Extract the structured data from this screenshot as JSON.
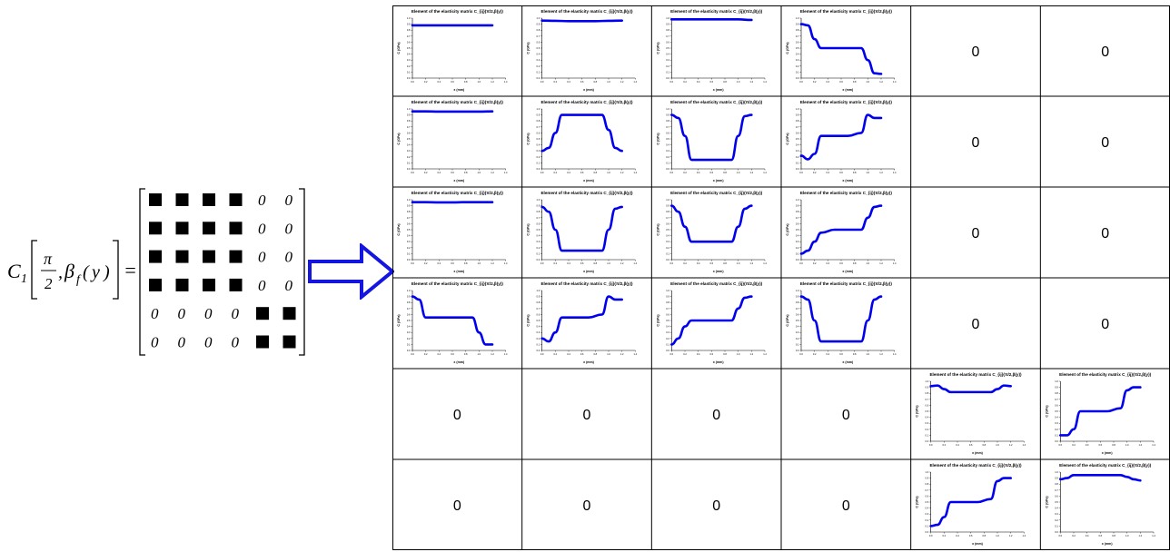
{
  "equation": {
    "lhs_symbol": "C",
    "lhs_subscript": "1",
    "fraction_numerator": "π",
    "fraction_denominator": "2",
    "beta_symbol": "β",
    "beta_subscript": "f",
    "argument_open": "(",
    "argument_var": "y",
    "argument_close": ")",
    "comma": ",",
    "equals": "=",
    "zero_symbol": "0",
    "pattern": [
      [
        "■",
        "■",
        "■",
        "■",
        "0",
        "0"
      ],
      [
        "■",
        "■",
        "■",
        "■",
        "0",
        "0"
      ],
      [
        "■",
        "■",
        "■",
        "■",
        "0",
        "0"
      ],
      [
        "■",
        "■",
        "■",
        "■",
        "0",
        "0"
      ],
      [
        "0",
        "0",
        "0",
        "0",
        "■",
        "■"
      ],
      [
        "0",
        "0",
        "0",
        "0",
        "■",
        "■"
      ]
    ]
  },
  "arrow": {
    "color": "#1515e0",
    "direction": "right"
  },
  "grid": {
    "rows": 6,
    "cols": 6,
    "zero_label": "0",
    "chart_title": "Element of the elasticity matrix C_{ij}(π/2,β(y))",
    "x_label": "x (mm)",
    "y_label_prefix": "C",
    "y_label_unit": "(GPa)",
    "line_color": "#0000ee"
  },
  "chart_data": [
    {
      "cell": "1-1",
      "type": "line",
      "title": "Element of the elasticity matrix C_{ij}(π/2,β(y))",
      "x": [
        0,
        0.2,
        0.4,
        0.6,
        0.8,
        1.0,
        1.2
      ],
      "values": [
        0.88,
        0.88,
        0.88,
        0.88,
        0.88,
        0.88,
        0.88
      ],
      "ylim": [
        0,
        1
      ]
    },
    {
      "cell": "1-2",
      "type": "line",
      "title": "Element of the elasticity matrix C_{ij}(π/2,β(y))",
      "x": [
        0,
        0.2,
        0.4,
        0.6,
        0.8,
        1.0,
        1.2
      ],
      "values": [
        0.96,
        0.955,
        0.95,
        0.95,
        0.95,
        0.955,
        0.96
      ],
      "ylim": [
        0,
        1
      ]
    },
    {
      "cell": "1-3",
      "type": "line",
      "title": "Element of the elasticity matrix C_{ij}(π/2,β(y))",
      "x": [
        0,
        0.2,
        0.4,
        0.6,
        0.8,
        1.0,
        1.2
      ],
      "values": [
        0.98,
        0.98,
        0.98,
        0.98,
        0.98,
        0.98,
        0.97
      ],
      "ylim": [
        0,
        1
      ]
    },
    {
      "cell": "1-4",
      "type": "line",
      "title": "Element of the elasticity matrix C_{ij}(π/2,β(y))",
      "x": [
        0,
        0.1,
        0.2,
        0.3,
        0.5,
        0.7,
        0.9,
        1.0,
        1.1,
        1.2
      ],
      "values": [
        0.9,
        0.88,
        0.65,
        0.5,
        0.5,
        0.5,
        0.5,
        0.3,
        0.08,
        0.07
      ],
      "ylim": [
        0,
        1
      ]
    },
    {
      "cell": "2-1",
      "type": "line",
      "title": "Element of the elasticity matrix C_{ij}(π/2,β(y))",
      "x": [
        0,
        0.2,
        0.4,
        0.6,
        0.8,
        1.0,
        1.2
      ],
      "values": [
        0.96,
        0.96,
        0.955,
        0.955,
        0.955,
        0.955,
        0.96
      ],
      "ylim": [
        0,
        1
      ]
    },
    {
      "cell": "2-2",
      "type": "line",
      "title": "Element of the elasticity matrix C_{ij}(π/2,β(y))",
      "x": [
        0,
        0.1,
        0.2,
        0.3,
        0.5,
        0.7,
        0.9,
        1.0,
        1.1,
        1.2
      ],
      "values": [
        0.3,
        0.35,
        0.6,
        0.9,
        0.9,
        0.9,
        0.9,
        0.65,
        0.35,
        0.3
      ],
      "ylim": [
        0,
        1
      ]
    },
    {
      "cell": "2-3",
      "type": "line",
      "title": "Element of the elasticity matrix C_{ij}(π/2,β(y))",
      "x": [
        0,
        0.1,
        0.2,
        0.3,
        0.5,
        0.7,
        0.9,
        1.0,
        1.1,
        1.2
      ],
      "values": [
        0.9,
        0.85,
        0.55,
        0.15,
        0.15,
        0.15,
        0.15,
        0.55,
        0.88,
        0.9
      ],
      "ylim": [
        0,
        1
      ]
    },
    {
      "cell": "2-4",
      "type": "line",
      "title": "Element of the elasticity matrix C_{ij}(π/2,β(y))",
      "x": [
        0,
        0.1,
        0.2,
        0.3,
        0.5,
        0.7,
        0.9,
        1.0,
        1.1,
        1.2
      ],
      "values": [
        0.22,
        0.16,
        0.25,
        0.55,
        0.55,
        0.55,
        0.6,
        0.9,
        0.85,
        0.85
      ],
      "ylim": [
        0,
        1
      ]
    },
    {
      "cell": "3-1",
      "type": "line",
      "title": "Element of the elasticity matrix C_{ij}(π/2,β(y))",
      "x": [
        0,
        0.2,
        0.4,
        0.6,
        0.8,
        1.0,
        1.2
      ],
      "values": [
        0.96,
        0.96,
        0.955,
        0.955,
        0.96,
        0.96,
        0.96
      ],
      "ylim": [
        0,
        1
      ]
    },
    {
      "cell": "3-2",
      "type": "line",
      "title": "Element of the elasticity matrix C_{ij}(π/2,β(y))",
      "x": [
        0,
        0.1,
        0.2,
        0.3,
        0.5,
        0.7,
        0.9,
        1.0,
        1.1,
        1.2
      ],
      "values": [
        0.88,
        0.8,
        0.5,
        0.15,
        0.15,
        0.15,
        0.15,
        0.5,
        0.85,
        0.88
      ],
      "ylim": [
        0,
        1
      ]
    },
    {
      "cell": "3-3",
      "type": "line",
      "title": "Element of the elasticity matrix C_{ij}(π/2,β(y))",
      "x": [
        0,
        0.1,
        0.2,
        0.3,
        0.5,
        0.7,
        0.9,
        1.0,
        1.1,
        1.2
      ],
      "values": [
        0.9,
        0.8,
        0.55,
        0.3,
        0.3,
        0.3,
        0.3,
        0.55,
        0.85,
        0.9
      ],
      "ylim": [
        0,
        1
      ]
    },
    {
      "cell": "3-4",
      "type": "line",
      "title": "Element of the elasticity matrix C_{ij}(π/2,β(y))",
      "x": [
        0,
        0.1,
        0.2,
        0.3,
        0.5,
        0.7,
        0.9,
        1.0,
        1.1,
        1.2
      ],
      "values": [
        0.1,
        0.15,
        0.3,
        0.45,
        0.5,
        0.5,
        0.5,
        0.7,
        0.88,
        0.9
      ],
      "ylim": [
        0,
        1
      ]
    },
    {
      "cell": "4-1",
      "type": "line",
      "title": "Element of the elasticity matrix C_{ij}(π/2,β(y))",
      "x": [
        0,
        0.1,
        0.2,
        0.3,
        0.5,
        0.7,
        0.9,
        1.0,
        1.1,
        1.2
      ],
      "values": [
        0.9,
        0.85,
        0.55,
        0.55,
        0.55,
        0.55,
        0.55,
        0.3,
        0.1,
        0.1
      ],
      "ylim": [
        0,
        1
      ]
    },
    {
      "cell": "4-2",
      "type": "line",
      "title": "Element of the elasticity matrix C_{ij}(π/2,β(y))",
      "x": [
        0,
        0.1,
        0.2,
        0.3,
        0.5,
        0.7,
        0.9,
        1.0,
        1.1,
        1.2
      ],
      "values": [
        0.2,
        0.15,
        0.3,
        0.55,
        0.55,
        0.55,
        0.6,
        0.9,
        0.85,
        0.85
      ],
      "ylim": [
        0,
        1
      ]
    },
    {
      "cell": "4-3",
      "type": "line",
      "title": "Element of the elasticity matrix C_{ij}(π/2,β(y))",
      "x": [
        0,
        0.1,
        0.2,
        0.3,
        0.5,
        0.7,
        0.9,
        1.0,
        1.1,
        1.2
      ],
      "values": [
        0.1,
        0.2,
        0.4,
        0.5,
        0.5,
        0.5,
        0.5,
        0.7,
        0.88,
        0.9
      ],
      "ylim": [
        0,
        1
      ]
    },
    {
      "cell": "4-4",
      "type": "line",
      "title": "Element of the elasticity matrix C_{ij}(π/2,β(y))",
      "x": [
        0,
        0.1,
        0.2,
        0.3,
        0.5,
        0.7,
        0.9,
        1.0,
        1.1,
        1.2
      ],
      "values": [
        0.9,
        0.85,
        0.5,
        0.15,
        0.15,
        0.15,
        0.15,
        0.5,
        0.85,
        0.9
      ],
      "ylim": [
        0,
        1
      ]
    },
    {
      "cell": "5-5",
      "type": "line",
      "title": "Element of the elasticity matrix C_{ij}(π/2,β(y))",
      "x": [
        0,
        0.1,
        0.2,
        0.3,
        0.5,
        0.7,
        0.9,
        1.0,
        1.1,
        1.2
      ],
      "values": [
        0.92,
        0.93,
        0.87,
        0.82,
        0.82,
        0.82,
        0.82,
        0.87,
        0.93,
        0.92
      ],
      "ylim": [
        0,
        1
      ]
    },
    {
      "cell": "5-6",
      "type": "line",
      "title": "Element of the elasticity matrix C_{ij}(π/2,β(y))",
      "x": [
        0,
        0.1,
        0.2,
        0.3,
        0.5,
        0.7,
        0.9,
        1.0,
        1.1,
        1.2
      ],
      "values": [
        0.1,
        0.1,
        0.2,
        0.5,
        0.5,
        0.5,
        0.55,
        0.85,
        0.9,
        0.9
      ],
      "ylim": [
        0,
        1
      ]
    },
    {
      "cell": "6-5",
      "type": "line",
      "title": "Element of the elasticity matrix C_{ij}(π/2,β(y))",
      "x": [
        0,
        0.1,
        0.2,
        0.3,
        0.5,
        0.7,
        0.9,
        1.0,
        1.1,
        1.2
      ],
      "values": [
        0.1,
        0.12,
        0.25,
        0.5,
        0.5,
        0.5,
        0.55,
        0.85,
        0.9,
        0.9
      ],
      "ylim": [
        0,
        1
      ]
    },
    {
      "cell": "6-6",
      "type": "line",
      "title": "Element of the elasticity matrix C_{ij}(π/2,β(y))",
      "x": [
        0,
        0.1,
        0.2,
        0.3,
        0.5,
        0.7,
        0.9,
        1.0,
        1.1,
        1.2
      ],
      "values": [
        0.88,
        0.9,
        0.95,
        0.95,
        0.95,
        0.95,
        0.95,
        0.92,
        0.88,
        0.86
      ],
      "ylim": [
        0,
        1
      ]
    }
  ]
}
